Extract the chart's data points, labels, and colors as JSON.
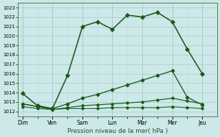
{
  "xlabel": "Pression niveau de la mer( hPa )",
  "bg_color": "#cce8e8",
  "grid_color_major": "#aac8c8",
  "grid_color_minor": "#c0dada",
  "line_color": "#1a5c1a",
  "x_labels": [
    "Dim",
    "Ven",
    "Sam",
    "Lun",
    "Mar",
    "Mer",
    "Jeu"
  ],
  "x_tick_positions": [
    0,
    2,
    4,
    6,
    8,
    10,
    12
  ],
  "xlim": [
    -0.3,
    13.0
  ],
  "ylim": [
    1011.5,
    1023.5
  ],
  "yticks": [
    1012,
    1013,
    1014,
    1015,
    1016,
    1017,
    1018,
    1019,
    1020,
    1021,
    1022,
    1023
  ],
  "series": [
    {
      "x": [
        0,
        1,
        2,
        3,
        4,
        5,
        6,
        7,
        8,
        9,
        10,
        11,
        12
      ],
      "y": [
        1013.9,
        1012.6,
        1012.3,
        1015.8,
        1021.0,
        1021.5,
        1020.7,
        1022.2,
        1022.0,
        1022.5,
        1021.5,
        1018.6,
        1016.0
      ],
      "marker": "P",
      "markersize": 3.5,
      "linestyle": "-",
      "linewidth": 1.2
    },
    {
      "x": [
        0,
        1,
        2,
        3,
        4,
        5,
        6,
        7,
        8,
        9,
        10,
        11,
        12
      ],
      "y": [
        1012.8,
        1012.5,
        1012.3,
        1012.8,
        1013.4,
        1013.8,
        1014.3,
        1014.8,
        1015.3,
        1015.8,
        1016.3,
        1013.5,
        1012.7
      ],
      "marker": "P",
      "markersize": 3.0,
      "linestyle": "-",
      "linewidth": 1.0
    },
    {
      "x": [
        0,
        1,
        2,
        3,
        4,
        5,
        6,
        7,
        8,
        9,
        10,
        11,
        12
      ],
      "y": [
        1012.8,
        1012.5,
        1012.2,
        1012.4,
        1012.6,
        1012.7,
        1012.8,
        1012.9,
        1013.0,
        1013.2,
        1013.4,
        1013.1,
        1012.8
      ],
      "marker": "P",
      "markersize": 2.5,
      "linestyle": "-",
      "linewidth": 0.9
    },
    {
      "x": [
        0,
        1,
        2,
        3,
        4,
        5,
        6,
        7,
        8,
        9,
        10,
        11,
        12
      ],
      "y": [
        1012.5,
        1012.3,
        1012.2,
        1012.3,
        1012.3,
        1012.3,
        1012.4,
        1012.4,
        1012.4,
        1012.4,
        1012.5,
        1012.4,
        1012.3
      ],
      "marker": "P",
      "markersize": 2.5,
      "linestyle": "-",
      "linewidth": 0.8
    }
  ]
}
